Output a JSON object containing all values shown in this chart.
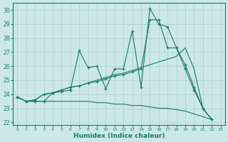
{
  "xlabel": "Humidex (Indice chaleur)",
  "xlim": [
    -0.5,
    23.5
  ],
  "ylim": [
    21.8,
    30.5
  ],
  "xticks": [
    0,
    1,
    2,
    3,
    4,
    5,
    6,
    7,
    8,
    9,
    10,
    11,
    12,
    13,
    14,
    15,
    16,
    17,
    18,
    19,
    20,
    21,
    22,
    23
  ],
  "yticks": [
    22,
    23,
    24,
    25,
    26,
    27,
    28,
    29,
    30
  ],
  "background_color": "#cce8e5",
  "grid_color": "#aacfcc",
  "line_color": "#1a7a6a",
  "lines": [
    {
      "x": [
        0,
        1,
        2,
        3,
        4,
        5,
        6,
        7,
        8,
        9,
        10,
        11,
        12,
        13,
        14,
        15,
        16,
        17,
        18,
        19,
        20,
        21,
        22
      ],
      "y": [
        23.8,
        23.5,
        23.5,
        23.5,
        24.1,
        24.2,
        24.3,
        27.1,
        25.9,
        26.0,
        24.4,
        25.8,
        25.8,
        28.5,
        24.5,
        30.1,
        29.0,
        28.8,
        27.3,
        25.8,
        24.3,
        23.0,
        22.2
      ],
      "has_marker": true
    },
    {
      "x": [
        0,
        1,
        2,
        3,
        4,
        5,
        6,
        7,
        8,
        9,
        10,
        11,
        12,
        13,
        14,
        15,
        16,
        17,
        18,
        19,
        20,
        21,
        22
      ],
      "y": [
        23.8,
        23.5,
        23.6,
        24.0,
        24.1,
        24.3,
        24.5,
        24.6,
        24.8,
        24.9,
        25.1,
        25.3,
        25.4,
        25.6,
        25.8,
        29.3,
        29.3,
        27.3,
        27.3,
        26.1,
        24.5,
        23.0,
        22.2
      ],
      "has_marker": true
    },
    {
      "x": [
        0,
        1,
        2,
        3,
        4,
        5,
        6,
        7,
        8,
        9,
        10,
        11,
        12,
        13,
        14,
        15,
        16,
        17,
        18,
        19,
        20,
        21,
        22
      ],
      "y": [
        23.8,
        23.5,
        23.6,
        24.0,
        24.1,
        24.3,
        24.5,
        24.6,
        24.8,
        25.0,
        25.2,
        25.4,
        25.5,
        25.7,
        25.9,
        26.1,
        26.3,
        26.5,
        26.7,
        27.3,
        25.8,
        23.0,
        22.2
      ],
      "has_marker": false
    },
    {
      "x": [
        0,
        1,
        2,
        3,
        4,
        5,
        6,
        7,
        8,
        9,
        10,
        11,
        12,
        13,
        14,
        15,
        16,
        17,
        18,
        19,
        20,
        21,
        22
      ],
      "y": [
        23.8,
        23.5,
        23.5,
        23.5,
        23.5,
        23.5,
        23.5,
        23.5,
        23.5,
        23.4,
        23.4,
        23.3,
        23.3,
        23.2,
        23.2,
        23.1,
        23.0,
        23.0,
        22.9,
        22.8,
        22.6,
        22.4,
        22.2
      ],
      "has_marker": false
    }
  ]
}
